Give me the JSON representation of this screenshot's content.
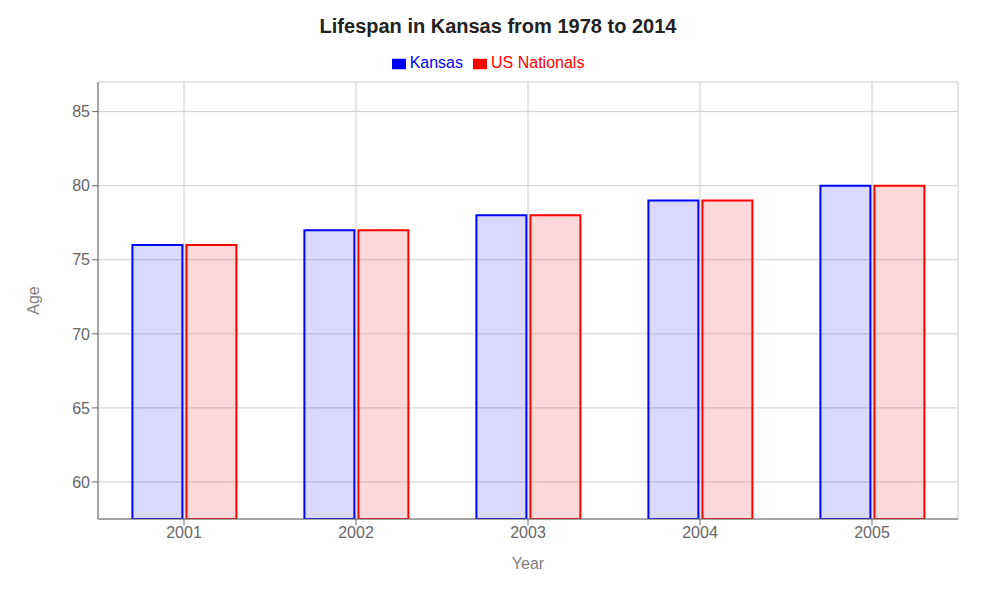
{
  "chart_data": {
    "type": "bar",
    "title": "Lifespan in Kansas from 1978 to 2014",
    "x_label": "Year",
    "y_label": "Age",
    "categories": [
      "2001",
      "2002",
      "2003",
      "2004",
      "2005"
    ],
    "series": [
      {
        "name": "Kansas",
        "color": "#0000ff",
        "values": [
          76.0,
          77.0,
          78.0,
          79.0,
          80.0
        ]
      },
      {
        "name": "US Nationals",
        "color": "#ff0000",
        "values": [
          76.0,
          77.0,
          78.0,
          79.0,
          80.0
        ]
      }
    ],
    "ylim": [
      57.5,
      87
    ],
    "yticks": [
      60,
      65,
      70,
      75,
      80,
      85
    ],
    "grid": true,
    "legend": "top"
  }
}
